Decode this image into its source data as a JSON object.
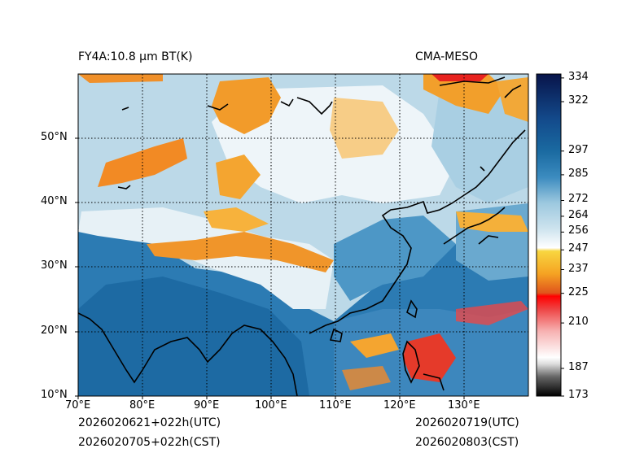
{
  "header": {
    "product": "FY4A:10.8 µm BT(K)",
    "model": "CMA-MESO"
  },
  "footer": {
    "init_utc": "2026020621+022h(UTC)",
    "init_cst": "2026020705+022h(CST)",
    "valid_utc": "2026020719(UTC)",
    "valid_cst": "2026020803(CST)"
  },
  "axes": {
    "lon_labels": [
      "70°E",
      "80°E",
      "90°E",
      "100°E",
      "110°E",
      "120°E",
      "130°E"
    ],
    "lat_labels": [
      "10°N",
      "20°N",
      "30°N",
      "40°N",
      "50°N"
    ],
    "lon_range": [
      70,
      140
    ],
    "lat_range": [
      10,
      60
    ]
  },
  "colorbar": {
    "range": [
      173,
      336
    ],
    "ticks": [
      "173",
      "187",
      "210",
      "225",
      "237",
      "247",
      "256",
      "264",
      "272",
      "285",
      "297",
      "322",
      "334"
    ],
    "tick_values": [
      173,
      187,
      210,
      225,
      237,
      247,
      256,
      264,
      272,
      285,
      297,
      322,
      334
    ]
  },
  "colors": {
    "ocean": "#1f6fa6",
    "land_light": "#cfe3ee",
    "land_white": "#eef5f8",
    "cold_orange": "#f08a1e",
    "cold_red": "#e02020",
    "coast": "#000000"
  }
}
